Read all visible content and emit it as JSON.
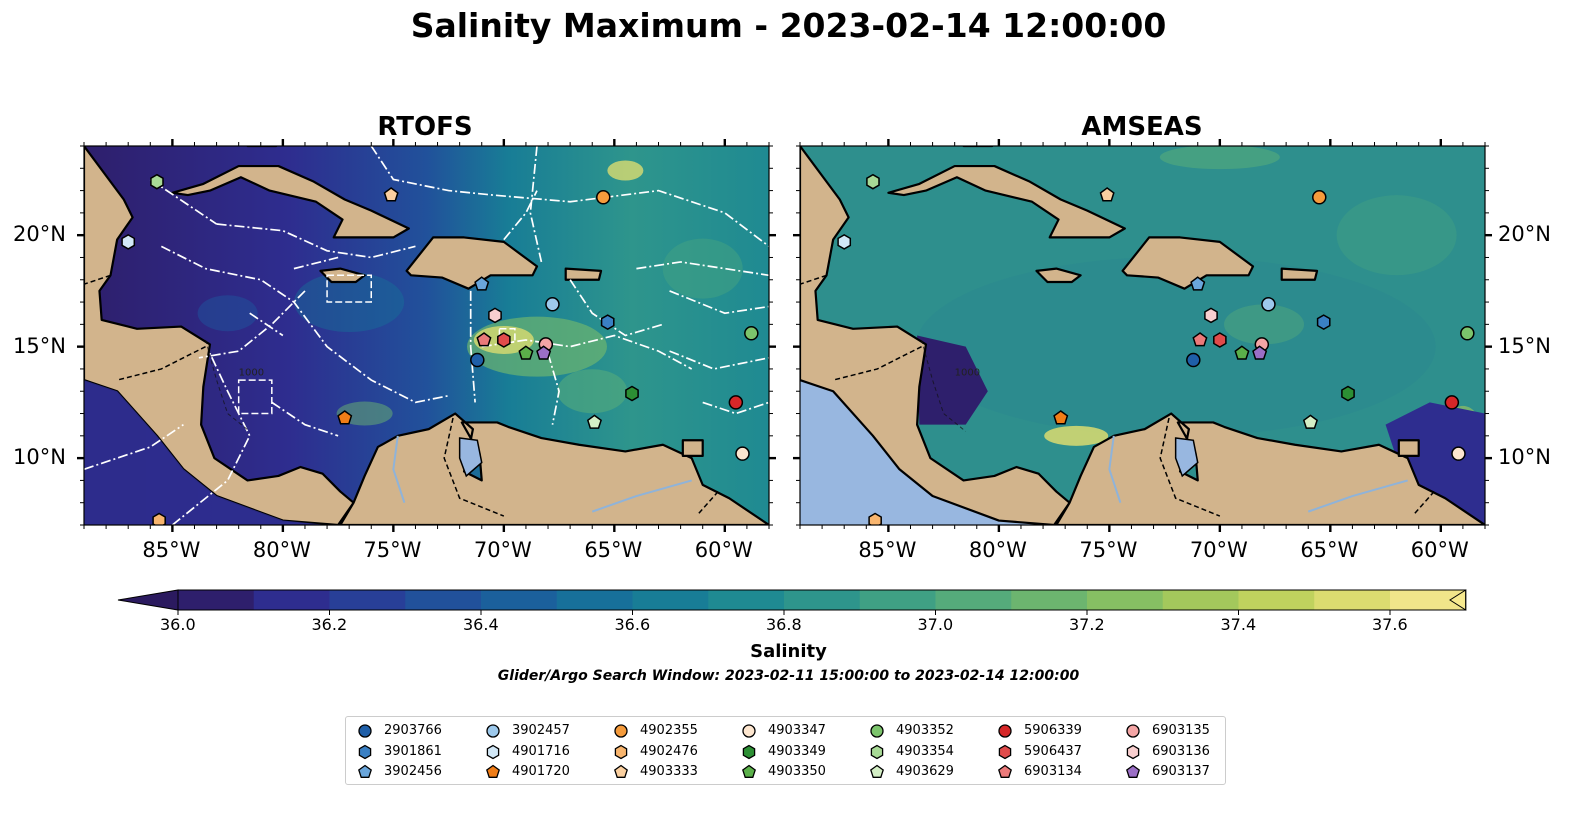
{
  "title": "Salinity Maximum - 2023-02-14 12:00:00",
  "panels": [
    {
      "title": "RTOFS",
      "x_ticks": [
        "85°W",
        "80°W",
        "75°W",
        "70°W",
        "65°W",
        "60°W"
      ],
      "y_ticks": [
        "20°N",
        "15°N",
        "10°N"
      ],
      "contour_label": "1000"
    },
    {
      "title": "AMSEAS",
      "x_ticks": [
        "85°W",
        "80°W",
        "75°W",
        "70°W",
        "65°W",
        "60°W"
      ],
      "y_ticks": [
        "20°N",
        "15°N",
        "10°N"
      ],
      "contour_label": "1000"
    }
  ],
  "colorbar": {
    "label": "Salinity",
    "ticks": [
      "36.0",
      "36.2",
      "36.4",
      "36.6",
      "36.8",
      "37.0",
      "37.2",
      "37.4",
      "37.6"
    ],
    "min": 36.0,
    "max": 37.7,
    "step": 0.1,
    "extend": "both",
    "colors": [
      "#2e1f6c",
      "#2e2d8f",
      "#283f98",
      "#21519b",
      "#1b609c",
      "#17709a",
      "#187d96",
      "#1f8a92",
      "#2e958c",
      "#3fa084",
      "#55ab7b",
      "#6cb56f",
      "#86bf63",
      "#a3c85c",
      "#c0d25e",
      "#dbdc70",
      "#f1e58a"
    ]
  },
  "search_window": "Glider/Argo Search Window: 2023-02-11 15:00:00 to 2023-02-14 12:00:00",
  "chart_data": [
    {
      "type": "map",
      "title": "RTOFS",
      "variable": "Salinity maximum",
      "xlim": [
        -89,
        -58
      ],
      "ylim": [
        7,
        24
      ],
      "projection": "plate carree"
    },
    {
      "type": "map",
      "title": "AMSEAS",
      "variable": "Salinity maximum",
      "xlim": [
        -89,
        -58
      ],
      "ylim": [
        7,
        24
      ],
      "projection": "plate carree"
    }
  ],
  "platforms": [
    {
      "id": "2903766",
      "marker": "circle",
      "color": "#1f5fa8",
      "lon": -71.2,
      "lat": 14.4
    },
    {
      "id": "3901861",
      "marker": "hexagon",
      "color": "#3a80c4",
      "lon": -65.3,
      "lat": 16.1
    },
    {
      "id": "3902456",
      "marker": "pentagon",
      "color": "#6aa6db",
      "lon": -71.0,
      "lat": 17.8
    },
    {
      "id": "3902457",
      "marker": "circle",
      "color": "#9dc9ec",
      "lon": -67.8,
      "lat": 16.9
    },
    {
      "id": "4901716",
      "marker": "hexagon",
      "color": "#d2e8f7",
      "lon": -87.0,
      "lat": 19.7
    },
    {
      "id": "4901720",
      "marker": "pentagon",
      "color": "#f07d17",
      "lon": -77.2,
      "lat": 11.8
    },
    {
      "id": "4902355",
      "marker": "circle",
      "color": "#f59b3c",
      "lon": -65.5,
      "lat": 21.7
    },
    {
      "id": "4902476",
      "marker": "hexagon",
      "color": "#f8b56e",
      "lon": -85.6,
      "lat": 7.2
    },
    {
      "id": "4903333",
      "marker": "pentagon",
      "color": "#fbd0a0",
      "lon": -75.1,
      "lat": 21.8
    },
    {
      "id": "4903347",
      "marker": "circle",
      "color": "#fde6cf",
      "lon": -59.2,
      "lat": 10.2
    },
    {
      "id": "4903349",
      "marker": "hexagon",
      "color": "#2c8f34",
      "lon": -64.2,
      "lat": 12.9
    },
    {
      "id": "4903350",
      "marker": "pentagon",
      "color": "#5bb04a",
      "lon": -69.0,
      "lat": 14.7
    },
    {
      "id": "4903352",
      "marker": "circle",
      "color": "#7cc46c",
      "lon": -58.8,
      "lat": 15.6
    },
    {
      "id": "4903354",
      "marker": "hexagon",
      "color": "#a8da96",
      "lon": -85.7,
      "lat": 22.4
    },
    {
      "id": "4903629",
      "marker": "pentagon",
      "color": "#d4efc6",
      "lon": -65.9,
      "lat": 11.6
    },
    {
      "id": "5906339",
      "marker": "circle",
      "color": "#d62728",
      "lon": -59.5,
      "lat": 12.5
    },
    {
      "id": "5906437",
      "marker": "hexagon",
      "color": "#e14b4b",
      "lon": -70.0,
      "lat": 15.3
    },
    {
      "id": "6903134",
      "marker": "pentagon",
      "color": "#eb7a7a",
      "lon": -70.9,
      "lat": 15.3
    },
    {
      "id": "6903135",
      "marker": "circle",
      "color": "#f4a5a5",
      "lon": -68.1,
      "lat": 15.1
    },
    {
      "id": "6903136",
      "marker": "hexagon",
      "color": "#f9cfcf",
      "lon": -70.4,
      "lat": 16.4
    },
    {
      "id": "6903137",
      "marker": "pentagon",
      "color": "#9b6fc6",
      "lon": -68.2,
      "lat": 14.7
    }
  ]
}
